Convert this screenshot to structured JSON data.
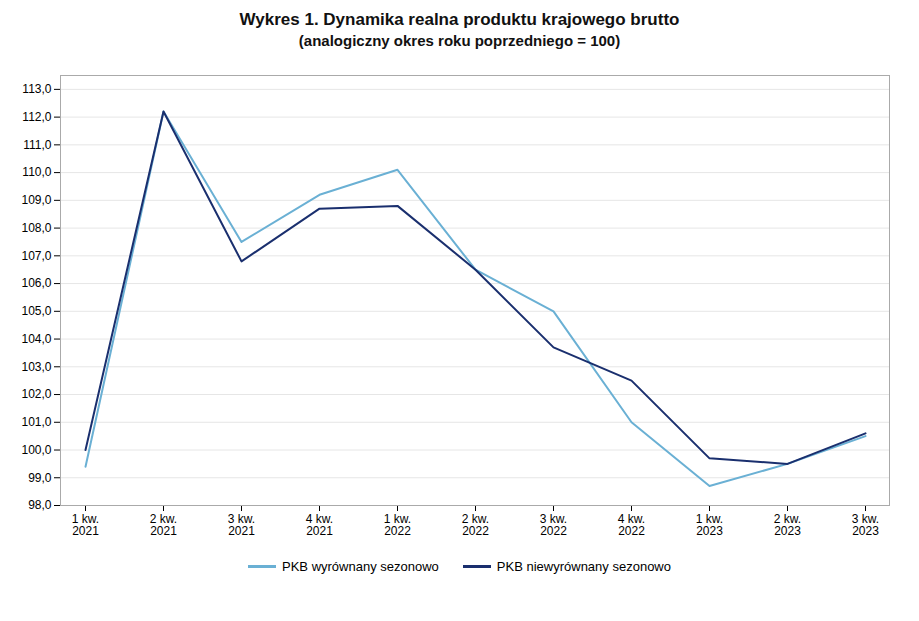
{
  "chart_data": {
    "type": "line",
    "title": "Wykres 1. Dynamika realna produktu krajowego brutto",
    "subtitle": "(analogiczny okres roku poprzedniego = 100)",
    "categories": [
      "1 kw.\n2021",
      "2 kw.\n2021",
      "3 kw.\n2021",
      "4 kw.\n2021",
      "1 kw.\n2022",
      "2 kw.\n2022",
      "3 kw.\n2022",
      "4 kw.\n2022",
      "1 kw.\n2023",
      "2 kw.\n2023",
      "3 kw.\n2023"
    ],
    "series": [
      {
        "name": "PKB wyrównany sezonowo",
        "color": "#6ab0d4",
        "values": [
          99.4,
          112.2,
          107.5,
          109.2,
          110.1,
          106.5,
          105.0,
          101.0,
          98.7,
          99.5,
          100.5
        ]
      },
      {
        "name": "PKB niewyrównany sezonowo",
        "color": "#1a2f6e",
        "values": [
          100.0,
          112.2,
          106.8,
          108.7,
          108.8,
          106.5,
          103.7,
          102.5,
          99.7,
          99.5,
          100.6
        ]
      }
    ],
    "ylim": [
      98.0,
      113.5
    ],
    "yticks": [
      {
        "value": 98.0,
        "label": "98,0"
      },
      {
        "value": 99.0,
        "label": "99,0"
      },
      {
        "value": 100.0,
        "label": "100,0"
      },
      {
        "value": 101.0,
        "label": "101,0"
      },
      {
        "value": 102.0,
        "label": "102,0"
      },
      {
        "value": 103.0,
        "label": "103,0"
      },
      {
        "value": 104.0,
        "label": "104,0"
      },
      {
        "value": 105.0,
        "label": "105,0"
      },
      {
        "value": 106.0,
        "label": "106,0"
      },
      {
        "value": 107.0,
        "label": "107,0"
      },
      {
        "value": 108.0,
        "label": "108,0"
      },
      {
        "value": 109.0,
        "label": "109,0"
      },
      {
        "value": 110.0,
        "label": "110,0"
      },
      {
        "value": 111.0,
        "label": "111,0"
      },
      {
        "value": 112.0,
        "label": "112,0"
      },
      {
        "value": 113.0,
        "label": "113,0"
      }
    ],
    "grid": true,
    "legend": "bottom"
  }
}
